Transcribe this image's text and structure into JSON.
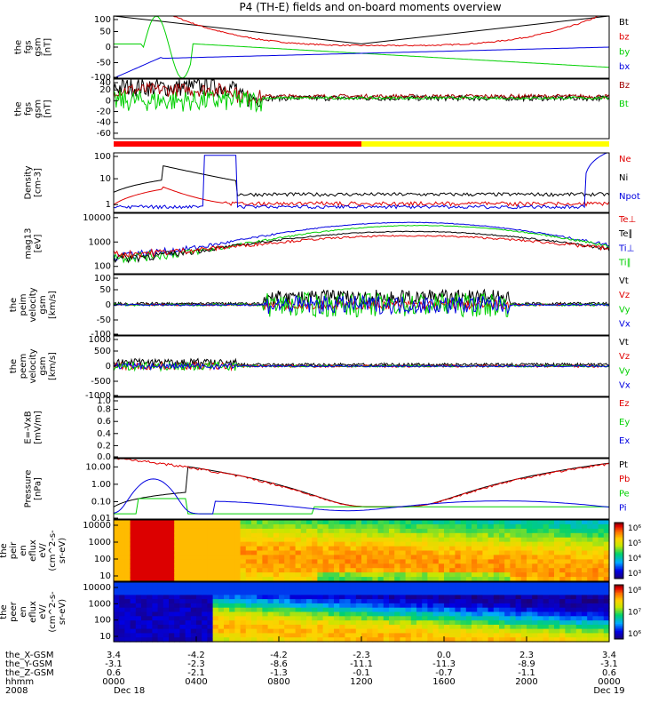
{
  "title": "P4 (TH-E) fields and on-board moments overview",
  "colors": {
    "black": "#000000",
    "red": "#e00000",
    "green": "#00d000",
    "blue": "#0000e0",
    "darkred": "#a00000",
    "mode_red": "#ff0000",
    "mode_yellow": "#ffff00"
  },
  "chart_data": [
    {
      "type": "line",
      "ylabel": [
        "the",
        "fgs",
        "gsm",
        "[nT]"
      ],
      "ylim": [
        -100,
        100
      ],
      "yticks": [
        "100",
        "50",
        "0",
        "-50",
        "-100"
      ],
      "ytick_values": [
        100,
        50,
        0,
        -50,
        -100
      ],
      "legend": [
        {
          "label": "Bt",
          "color": "#000000"
        },
        {
          "label": "bz",
          "color": "#e00000"
        },
        {
          "label": "by",
          "color": "#00d000"
        },
        {
          "label": "bx",
          "color": "#0000e0"
        }
      ]
    },
    {
      "type": "line",
      "ylabel": [
        "the",
        "fgs",
        "gsm",
        "[nT]"
      ],
      "ylim": [
        -70,
        40
      ],
      "yticks": [
        "40",
        "20",
        "0",
        "-20",
        "-40",
        "-60"
      ],
      "ytick_values": [
        40,
        20,
        0,
        -20,
        -40,
        -60
      ],
      "legend": [
        {
          "label": "Bz",
          "color": "#a00000"
        },
        {
          "label": "Bt",
          "color": "#00d000"
        }
      ]
    },
    {
      "type": "line",
      "ylabel": [
        "Density",
        "[cm-3]"
      ],
      "scale": "log",
      "ylim": [
        0.5,
        100
      ],
      "yticks": [
        "100",
        "10",
        "1"
      ],
      "ytick_values": [
        100,
        10,
        1
      ],
      "legend": [
        {
          "label": "Ne",
          "color": "#e00000"
        },
        {
          "label": "Ni",
          "color": "#000000"
        },
        {
          "label": "Npot",
          "color": "#0000e0"
        }
      ]
    },
    {
      "type": "line",
      "ylabel": [
        "mag13",
        "[eV]"
      ],
      "scale": "log",
      "ylim": [
        50,
        15000
      ],
      "yticks": [
        "10000",
        "1000",
        "100"
      ],
      "ytick_values": [
        10000,
        1000,
        100
      ],
      "legend": [
        {
          "label": "Te⊥",
          "color": "#e00000"
        },
        {
          "label": "Te∥",
          "color": "#000000"
        },
        {
          "label": "Ti⊥",
          "color": "#0000e0"
        },
        {
          "label": "Ti∥",
          "color": "#00d000"
        }
      ]
    },
    {
      "type": "line",
      "ylabel": [
        "the",
        "peim",
        "velocity",
        "gsm",
        "[km/s]"
      ],
      "ylim": [
        -100,
        100
      ],
      "yticks": [
        "100",
        "50",
        "0",
        "-50",
        "-100"
      ],
      "ytick_values": [
        100,
        50,
        0,
        -50,
        -100
      ],
      "legend": [
        {
          "label": "Vt",
          "color": "#000000"
        },
        {
          "label": "Vz",
          "color": "#e00000"
        },
        {
          "label": "Vy",
          "color": "#00d000"
        },
        {
          "label": "Vx",
          "color": "#0000e0"
        }
      ]
    },
    {
      "type": "line",
      "ylabel": [
        "the",
        "peem",
        "velocity",
        "gsm",
        "[km/s]"
      ],
      "ylim": [
        -1000,
        1000
      ],
      "yticks": [
        "1000",
        "500",
        "0",
        "-500",
        "-1000"
      ],
      "ytick_values": [
        1000,
        500,
        0,
        -500,
        -1000
      ],
      "legend": [
        {
          "label": "Vt",
          "color": "#000000"
        },
        {
          "label": "Vz",
          "color": "#e00000"
        },
        {
          "label": "Vy",
          "color": "#00d000"
        },
        {
          "label": "Vx",
          "color": "#0000e0"
        }
      ]
    },
    {
      "type": "line",
      "ylabel": [
        "E=-VxB",
        "[mV/m]"
      ],
      "ylim": [
        0,
        1
      ],
      "yticks": [
        "1.0",
        "0.8",
        "0.6",
        "0.4",
        "0.2",
        "0.0"
      ],
      "ytick_values": [
        1.0,
        0.8,
        0.6,
        0.4,
        0.2,
        0.0
      ],
      "legend": [
        {
          "label": "Ez",
          "color": "#e00000"
        },
        {
          "label": "Ey",
          "color": "#00d000"
        },
        {
          "label": "Ex",
          "color": "#0000e0"
        }
      ]
    },
    {
      "type": "line",
      "ylabel": [
        "Pressure",
        "[nPa]"
      ],
      "scale": "log",
      "ylim": [
        0.01,
        30
      ],
      "yticks": [
        "10.00",
        "1.00",
        "0.10",
        "0.01"
      ],
      "ytick_values": [
        10,
        1,
        0.1,
        0.01
      ],
      "legend": [
        {
          "label": "Pt",
          "color": "#000000"
        },
        {
          "label": "Pb",
          "color": "#e00000"
        },
        {
          "label": "Pe",
          "color": "#00d000"
        },
        {
          "label": "Pi",
          "color": "#0000e0"
        }
      ]
    },
    {
      "type": "heatmap",
      "ylabel": [
        "the",
        "peir",
        "en",
        "eflux",
        "eV/",
        "(cm^2-s-",
        "sr-eV)"
      ],
      "yticks": [
        "10000",
        "1000",
        "100",
        "10"
      ],
      "colorbar_ticks": [
        "10⁶",
        "10⁵",
        "10⁴",
        "10³"
      ]
    },
    {
      "type": "heatmap",
      "ylabel": [
        "the",
        "peer",
        "en",
        "eflux",
        "eV/",
        "(cm^2-s-",
        "sr-eV)"
      ],
      "yticks": [
        "10000",
        "1000",
        "100",
        "10"
      ],
      "colorbar_ticks": [
        "10⁸",
        "10⁷",
        "10⁶"
      ]
    }
  ],
  "xaxis": {
    "row_labels": [
      "the_X-GSM",
      "the_Y-GSM",
      "the_Z-GSM",
      "hhmm",
      "2008"
    ],
    "columns": [
      {
        "values": [
          "3.4",
          "-3.1",
          "0.6",
          "0000",
          "Dec 18"
        ]
      },
      {
        "values": [
          "-4.2",
          "-2.3",
          "-2.1",
          "0400",
          ""
        ]
      },
      {
        "values": [
          "-4.2",
          "-8.6",
          "-1.3",
          "0800",
          ""
        ]
      },
      {
        "values": [
          "-2.3",
          "-11.1",
          "-0.1",
          "1200",
          ""
        ]
      },
      {
        "values": [
          "0.0",
          "-11.3",
          "-0.7",
          "1600",
          ""
        ]
      },
      {
        "values": [
          "2.3",
          "-8.9",
          "-1.1",
          "2000",
          ""
        ]
      },
      {
        "values": [
          "3.4",
          "-3.1",
          "0.6",
          "0000",
          "Dec 19"
        ]
      }
    ]
  }
}
